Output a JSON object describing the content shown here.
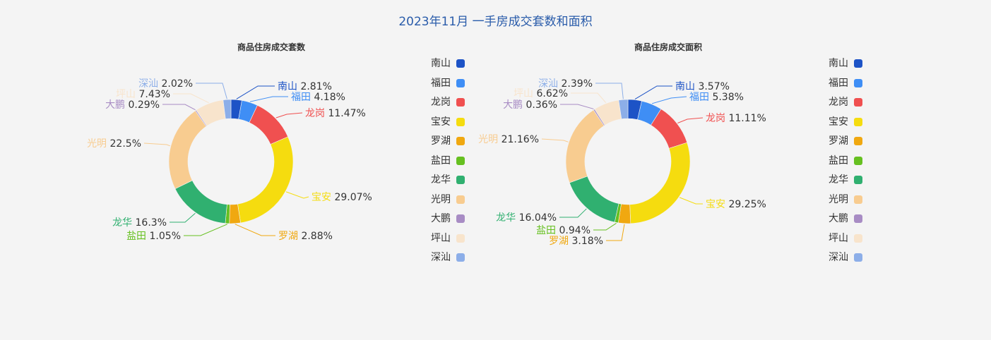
{
  "title": "2023年11月 一手房成交套数和面积",
  "colors": {
    "南山": "#1d53c6",
    "福田": "#3f8ef5",
    "龙岗": "#f05050",
    "宝安": "#f5dc0f",
    "罗湖": "#f0a810",
    "盐田": "#66c020",
    "龙华": "#30b070",
    "光明": "#f8cc90",
    "大鹏": "#a88cc4",
    "坪山": "#f8e4cc",
    "深汕": "#8caee8"
  },
  "chart_data": [
    {
      "type": "pie",
      "title": "商品住房成交套数",
      "categories": [
        "南山",
        "福田",
        "龙岗",
        "宝安",
        "罗湖",
        "盐田",
        "龙华",
        "光明",
        "大鹏",
        "坪山",
        "深汕"
      ],
      "values": [
        2.81,
        4.18,
        11.47,
        29.07,
        2.88,
        1.05,
        16.3,
        22.5,
        0.29,
        7.43,
        2.02
      ],
      "value_labels": [
        "2.81%",
        "4.18%",
        "11.47%",
        "29.07%",
        "2.88%",
        "1.05%",
        "16.3%",
        "22.5%",
        "0.29%",
        "7.43%",
        "2.02%"
      ],
      "legend": [
        "南山",
        "福田",
        "龙岗",
        "宝安",
        "罗湖",
        "盐田",
        "龙华",
        "光明",
        "大鹏",
        "坪山",
        "深汕"
      ]
    },
    {
      "type": "pie",
      "title": "商品住房成交面积",
      "categories": [
        "南山",
        "福田",
        "龙岗",
        "宝安",
        "罗湖",
        "盐田",
        "龙华",
        "光明",
        "大鹏",
        "坪山",
        "深汕"
      ],
      "values": [
        3.57,
        5.38,
        11.11,
        29.25,
        3.18,
        0.94,
        16.04,
        21.16,
        0.36,
        6.62,
        2.39
      ],
      "value_labels": [
        "3.57%",
        "5.38%",
        "11.11%",
        "29.25%",
        "3.18%",
        "0.94%",
        "16.04%",
        "21.16%",
        "0.36%",
        "6.62%",
        "2.39%"
      ],
      "legend": [
        "南山",
        "福田",
        "龙岗",
        "宝安",
        "罗湖",
        "盐田",
        "龙华",
        "光明",
        "大鹏",
        "坪山",
        "深汕"
      ]
    }
  ]
}
